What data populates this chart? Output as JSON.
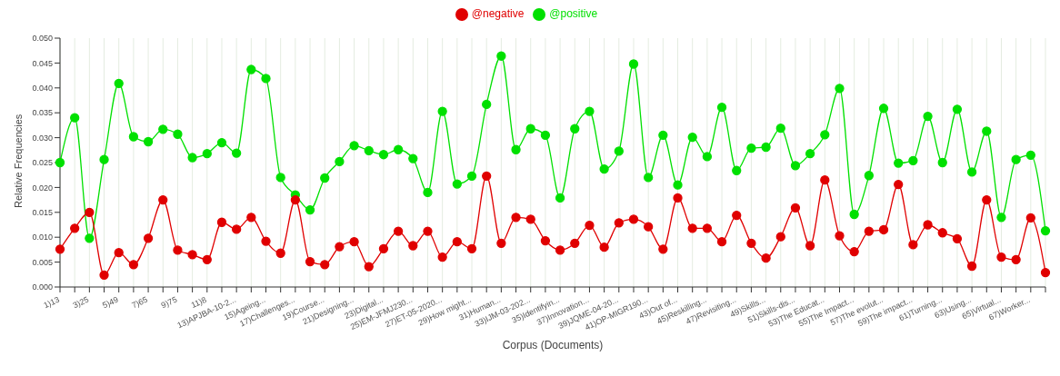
{
  "chart_data": {
    "type": "line",
    "xlabel": "Corpus (Documents)",
    "ylabel": "Relative Frequencies",
    "categories": [
      "1)13",
      null,
      "3)25",
      null,
      "5)49",
      null,
      "7)65",
      null,
      "9)75",
      null,
      "11)8",
      null,
      "13)APJBA-10-2...",
      null,
      "15)Ageing...",
      null,
      "17)Challenges...",
      null,
      "19)Course...",
      null,
      "21)Designing...",
      null,
      "23)Digital...",
      null,
      "25)EM-JFMJ230...",
      null,
      "27)ET-05-2020...",
      null,
      "29)How might...",
      null,
      "31)Human...",
      null,
      "33)IJM-03-202...",
      null,
      "35)Identifyin...",
      null,
      "37)Innovation...",
      null,
      "39)JQME-04-20...",
      null,
      "41)OP-MIGR190...",
      null,
      "43)Out of...",
      null,
      "45)Reskilling...",
      null,
      "47)Revisiting...",
      null,
      "49)Skills...",
      null,
      "51)Skills-dis...",
      null,
      "53)The Educat...",
      null,
      "55)The Impact...",
      null,
      "57)The evolut...",
      null,
      "59)The impact...",
      null,
      "61)Turning...",
      null,
      "63)Using...",
      null,
      "65)Virtual...",
      null,
      "67)Worker...",
      null
    ],
    "series": [
      {
        "name": "@positive",
        "color": "#00e000",
        "values": [
          0.025,
          0.034,
          0.0098,
          0.0256,
          0.0409,
          0.0302,
          0.0292,
          0.0317,
          0.0307,
          0.026,
          0.0268,
          0.029,
          0.0269,
          0.0437,
          0.0419,
          0.022,
          0.0185,
          0.0155,
          0.0219,
          0.0252,
          0.0284,
          0.0274,
          0.0266,
          0.0276,
          0.0258,
          0.019,
          0.0353,
          0.0207,
          0.0223,
          0.0367,
          0.0464,
          0.0276,
          0.0318,
          0.0305,
          0.0179,
          0.0318,
          0.0353,
          0.0237,
          0.0273,
          0.0448,
          0.022,
          0.0305,
          0.0205,
          0.0301,
          0.0262,
          0.0361,
          0.0234,
          0.0279,
          0.0281,
          0.0319,
          0.0244,
          0.0268,
          0.0306,
          0.0399,
          0.0146,
          0.0224,
          0.0359,
          0.0249,
          0.0254,
          0.0343,
          0.025,
          0.0357,
          0.0231,
          0.0313,
          0.014,
          0.0256,
          0.0265,
          0.0113
        ]
      },
      {
        "name": "@negative",
        "color": "#e00000",
        "values": [
          0.0076,
          0.0118,
          0.015,
          0.0024,
          0.0069,
          0.0045,
          0.0098,
          0.0175,
          0.0074,
          0.0065,
          0.0055,
          0.013,
          0.0116,
          0.014,
          0.0092,
          0.0068,
          0.0175,
          0.0051,
          0.0045,
          0.0081,
          0.0091,
          0.0041,
          0.0077,
          0.0112,
          0.0083,
          0.0112,
          0.006,
          0.0091,
          0.0077,
          0.0223,
          0.0088,
          0.014,
          0.0136,
          0.0093,
          0.0074,
          0.0088,
          0.0124,
          0.008,
          0.0129,
          0.0136,
          0.0121,
          0.0076,
          0.0179,
          0.0118,
          0.0118,
          0.0091,
          0.0144,
          0.0088,
          0.0058,
          0.0101,
          0.0159,
          0.0083,
          0.0215,
          0.0103,
          0.0071,
          0.0112,
          0.0115,
          0.0206,
          0.0085,
          0.0125,
          0.0109,
          0.0097,
          0.0042,
          0.0175,
          0.006,
          0.0055,
          0.0139,
          0.0029
        ]
      }
    ],
    "ylim": [
      0,
      0.05
    ],
    "yticks": [
      {
        "value": 0,
        "label": "0.000"
      },
      {
        "value": 0.005,
        "label": "0.005"
      },
      {
        "value": 0.01,
        "label": "0.010"
      },
      {
        "value": 0.015,
        "label": "0.015"
      },
      {
        "value": 0.02,
        "label": "0.020"
      },
      {
        "value": 0.025,
        "label": "0.025"
      },
      {
        "value": 0.03,
        "label": "0.030"
      },
      {
        "value": 0.035,
        "label": "0.035"
      },
      {
        "value": 0.04,
        "label": "0.040"
      },
      {
        "value": 0.045,
        "label": "0.045"
      },
      {
        "value": 0.05,
        "label": "0.050"
      }
    ],
    "grid": "x",
    "legend": "top",
    "marker": "circle",
    "line_style": "solid"
  }
}
